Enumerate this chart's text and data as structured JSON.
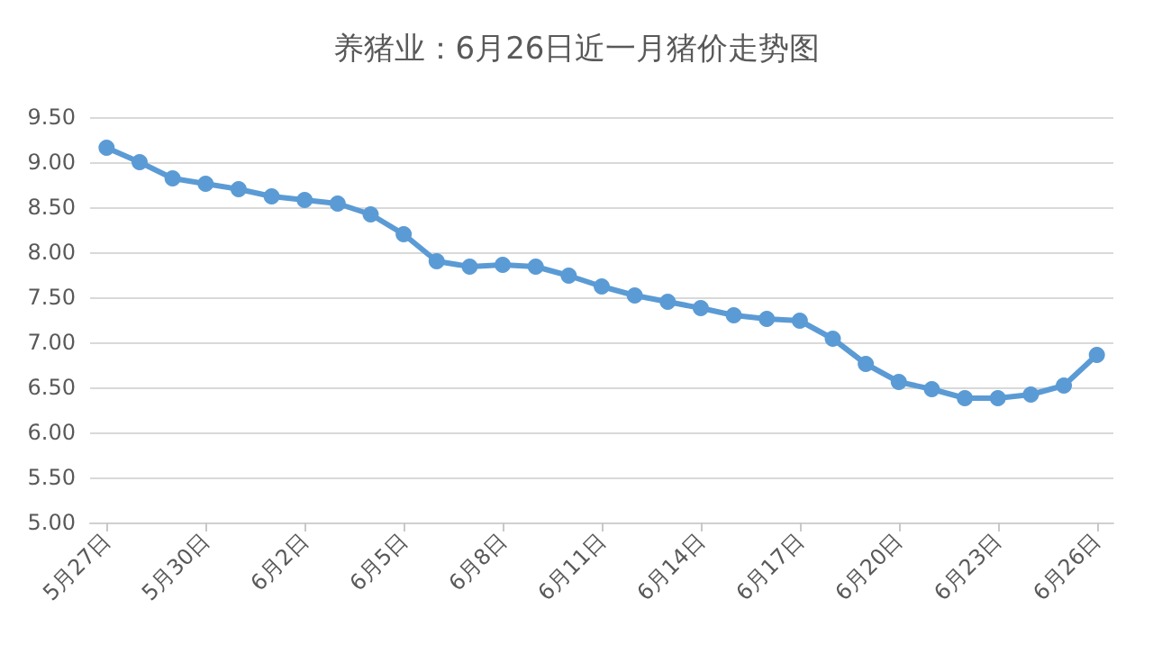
{
  "chart_data": {
    "type": "line",
    "title": "养猪业：6月26日近一月猪价走势图",
    "categories": [
      "5月27日",
      null,
      null,
      "5月30日",
      null,
      null,
      "6月2日",
      null,
      null,
      "6月5日",
      null,
      null,
      "6月8日",
      null,
      null,
      "6月11日",
      null,
      null,
      "6月14日",
      null,
      null,
      "6月17日",
      null,
      null,
      "6月20日",
      null,
      null,
      "6月23日",
      null,
      null,
      "6月26日"
    ],
    "series": [
      {
        "color": "#5b9bd5",
        "values": [
          9.16,
          9.0,
          8.82,
          8.76,
          8.7,
          8.62,
          8.58,
          8.54,
          8.42,
          8.2,
          7.9,
          7.84,
          7.86,
          7.84,
          7.74,
          7.62,
          7.52,
          7.45,
          7.38,
          7.3,
          7.26,
          7.24,
          7.04,
          6.76,
          6.56,
          6.48,
          6.38,
          6.38,
          6.42,
          6.52,
          6.86
        ]
      }
    ],
    "ylim": [
      5,
      9.5
    ],
    "yticks": [
      {
        "value": 5,
        "label": "5.00"
      },
      {
        "value": 5.5,
        "label": "5.50"
      },
      {
        "value": 6,
        "label": "6.00"
      },
      {
        "value": 6.5,
        "label": "6.50"
      },
      {
        "value": 7,
        "label": "7.00"
      },
      {
        "value": 7.5,
        "label": "7.50"
      },
      {
        "value": 8,
        "label": "8.00"
      },
      {
        "value": 8.5,
        "label": "8.50"
      },
      {
        "value": 9,
        "label": "9.00"
      },
      {
        "value": 9.5,
        "label": "9.50"
      }
    ],
    "grid": "y",
    "marker": "circle",
    "line_style": "solid"
  }
}
